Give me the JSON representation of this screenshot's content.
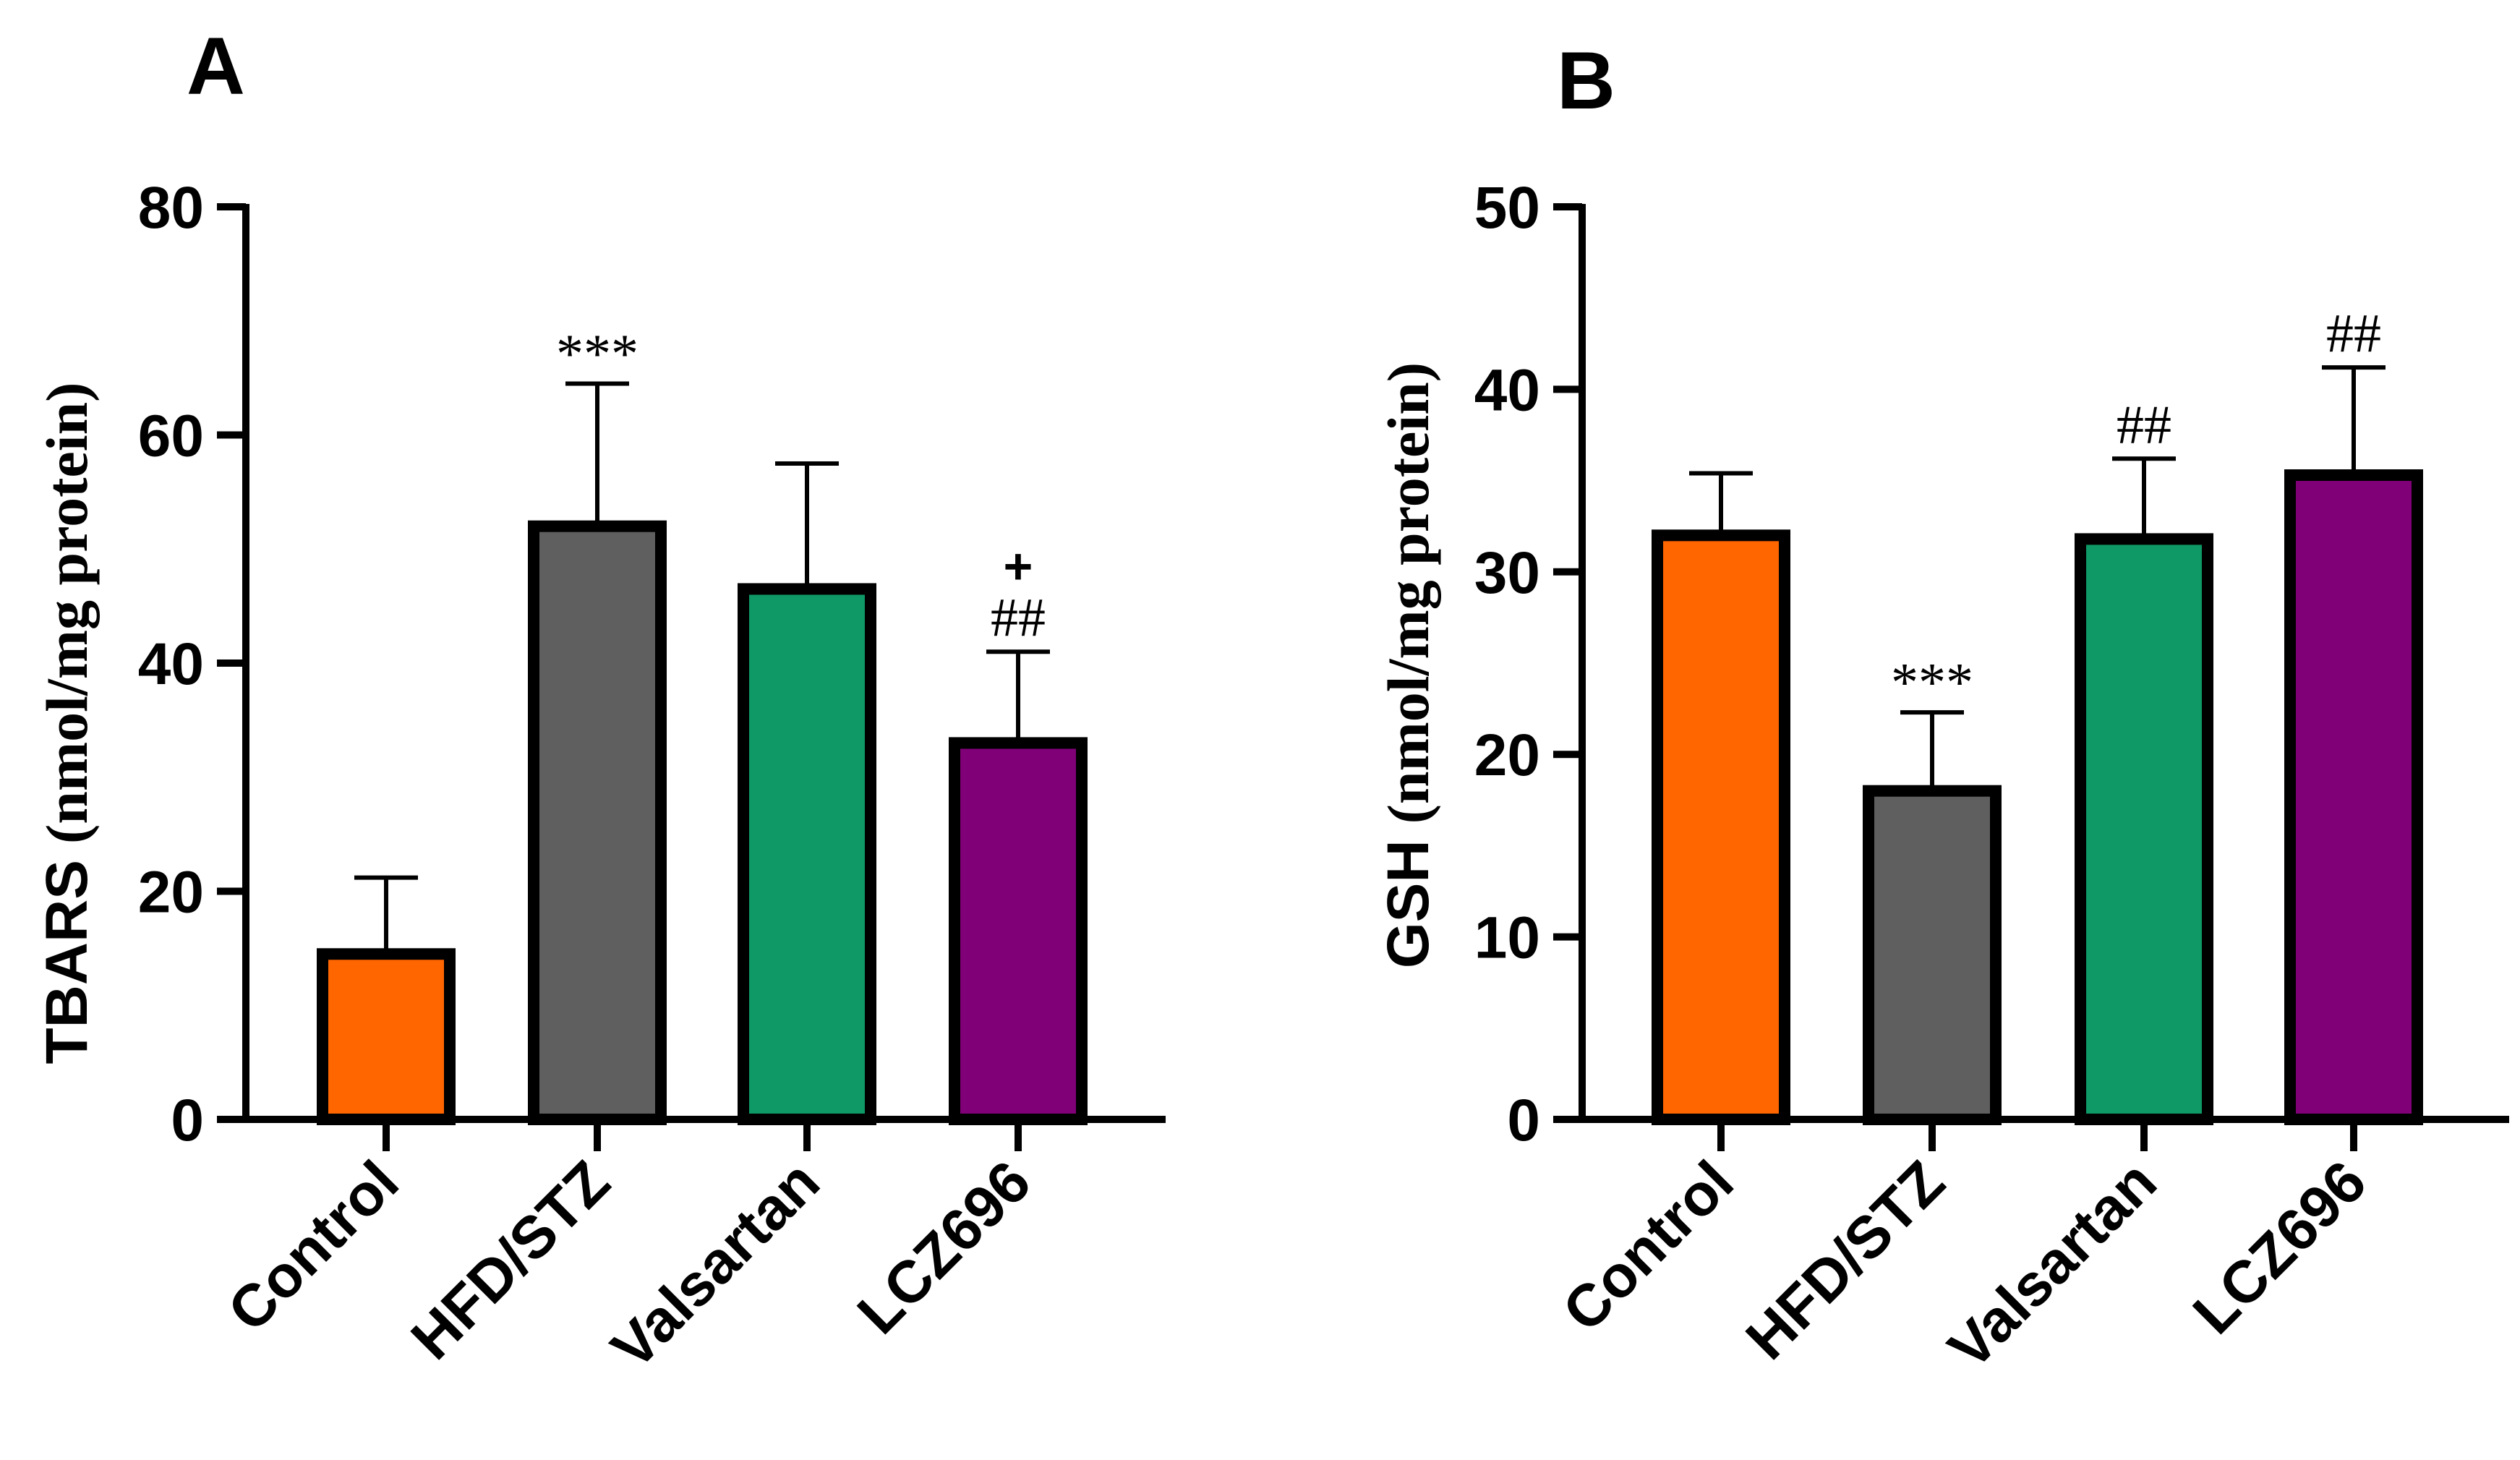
{
  "chart_data": [
    {
      "type": "bar",
      "panel": "A",
      "categories": [
        "Control",
        "HFD/STZ",
        "Valsartan",
        "LCZ696"
      ],
      "values": [
        14.5,
        52,
        46.5,
        33
      ],
      "errors": [
        6.7,
        12.5,
        11,
        8
      ],
      "colors": [
        "#ff6600",
        "#5f5f5f",
        "#0e9966",
        "#7f0077"
      ],
      "ylabel_main": "TBARS",
      "ylabel_unit": "(nmol/mg protein)",
      "ylim": [
        0,
        80
      ],
      "yticks": [
        0,
        20,
        40,
        60,
        80
      ],
      "ytick_labels": [
        "0",
        "20",
        "40",
        "60",
        "80"
      ],
      "annotations": [
        {
          "category": "HFD/STZ",
          "lines": [
            "***"
          ]
        },
        {
          "category": "LCZ696",
          "lines": [
            "+",
            "##"
          ]
        }
      ]
    },
    {
      "type": "bar",
      "panel": "B",
      "categories": [
        "Control",
        "HFD/STZ",
        "Valsartan",
        "LCZ696"
      ],
      "values": [
        32,
        18,
        31.8,
        35.3
      ],
      "errors": [
        3.4,
        4.3,
        4.4,
        5.9
      ],
      "colors": [
        "#ff6600",
        "#5f5f5f",
        "#0e9966",
        "#7f0077"
      ],
      "ylabel_main": "GSH",
      "ylabel_unit": "(nmol/mg protein)",
      "ylim": [
        0,
        50
      ],
      "yticks": [
        0,
        10,
        20,
        30,
        40,
        50
      ],
      "ytick_labels": [
        "0",
        "10",
        "20",
        "30",
        "40",
        "50"
      ],
      "annotations": [
        {
          "category": "HFD/STZ",
          "lines": [
            "***"
          ]
        },
        {
          "category": "Valsartan",
          "lines": [
            "##"
          ]
        },
        {
          "category": "LCZ696",
          "lines": [
            "##"
          ]
        }
      ]
    }
  ]
}
